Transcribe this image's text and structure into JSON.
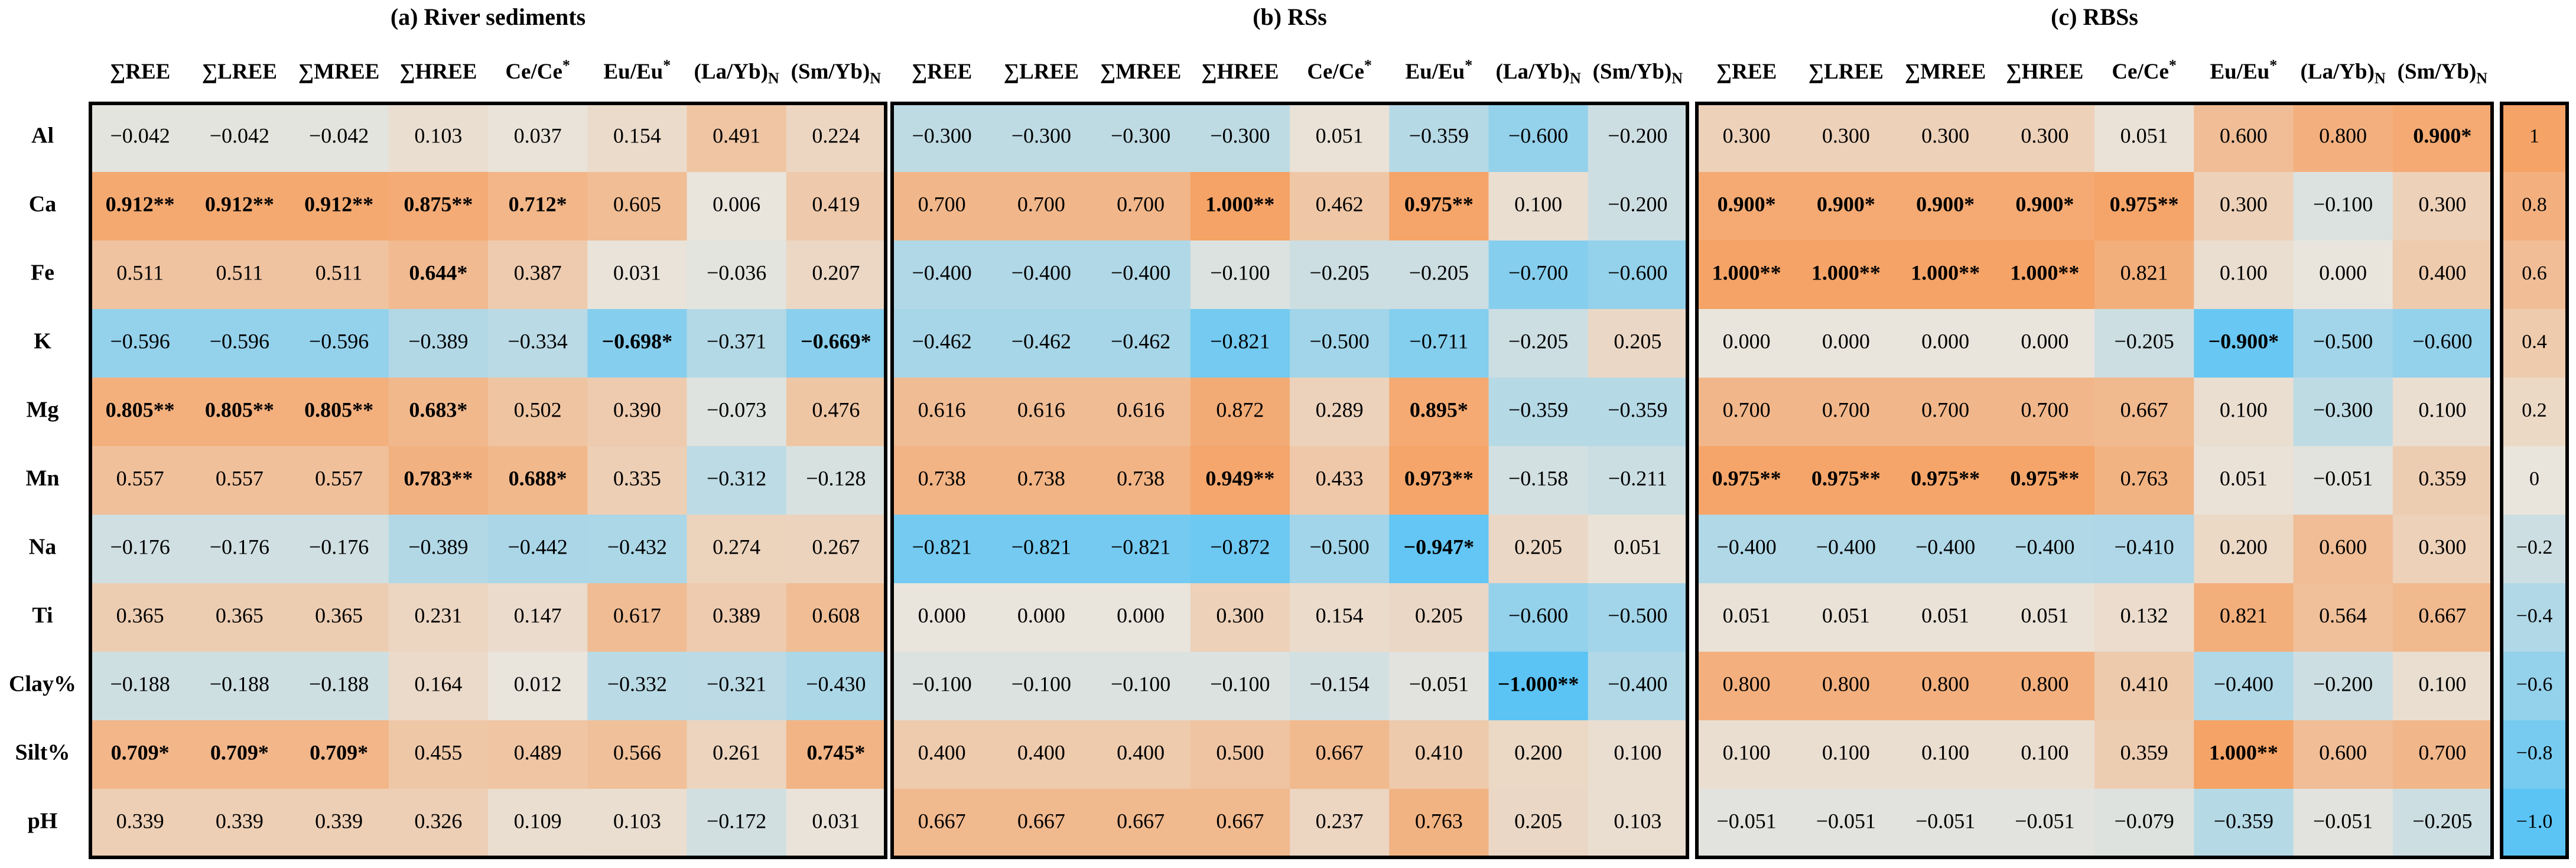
{
  "chart_data": [
    {
      "type": "heatmap",
      "title": "(a) River sediments",
      "categories": [
        "∑REE",
        "∑LREE",
        "∑MREE",
        "∑HREE",
        "Ce/Ce*",
        "Eu/Eu*",
        "(La/Yb)N",
        "(Sm/Yb)N"
      ],
      "values": [
        [
          -0.042,
          -0.042,
          -0.042,
          0.103,
          0.037,
          0.154,
          0.491,
          0.224
        ],
        [
          0.912,
          0.912,
          0.912,
          0.875,
          0.712,
          0.605,
          0.006,
          0.419
        ],
        [
          0.511,
          0.511,
          0.511,
          0.644,
          0.387,
          0.031,
          -0.036,
          0.207
        ],
        [
          -0.596,
          -0.596,
          -0.596,
          -0.389,
          -0.334,
          -0.698,
          -0.371,
          -0.669
        ],
        [
          0.805,
          0.805,
          0.805,
          0.683,
          0.502,
          0.39,
          -0.073,
          0.476
        ],
        [
          0.557,
          0.557,
          0.557,
          0.783,
          0.688,
          0.335,
          -0.312,
          -0.128
        ],
        [
          -0.176,
          -0.176,
          -0.176,
          -0.389,
          -0.442,
          -0.432,
          0.274,
          0.267
        ],
        [
          0.365,
          0.365,
          0.365,
          0.231,
          0.147,
          0.617,
          0.389,
          0.608
        ],
        [
          -0.188,
          -0.188,
          -0.188,
          0.164,
          0.012,
          -0.332,
          -0.321,
          -0.43
        ],
        [
          0.709,
          0.709,
          0.709,
          0.455,
          0.489,
          0.566,
          0.261,
          0.745
        ],
        [
          0.339,
          0.339,
          0.339,
          0.326,
          0.109,
          0.103,
          -0.172,
          0.031
        ]
      ],
      "value_labels": [
        [
          "−0.042",
          "−0.042",
          "−0.042",
          "0.103",
          "0.037",
          "0.154",
          "0.491",
          "0.224"
        ],
        [
          "0.912**",
          "0.912**",
          "0.912**",
          "0.875**",
          "0.712*",
          "0.605",
          "0.006",
          "0.419"
        ],
        [
          "0.511",
          "0.511",
          "0.511",
          "0.644*",
          "0.387",
          "0.031",
          "−0.036",
          "0.207"
        ],
        [
          "−0.596",
          "−0.596",
          "−0.596",
          "−0.389",
          "−0.334",
          "−0.698*",
          "−0.371",
          "−0.669*"
        ],
        [
          "0.805**",
          "0.805**",
          "0.805**",
          "0.683*",
          "0.502",
          "0.390",
          "−0.073",
          "0.476"
        ],
        [
          "0.557",
          "0.557",
          "0.557",
          "0.783**",
          "0.688*",
          "0.335",
          "−0.312",
          "−0.128"
        ],
        [
          "−0.176",
          "−0.176",
          "−0.176",
          "−0.389",
          "−0.442",
          "−0.432",
          "0.274",
          "0.267"
        ],
        [
          "0.365",
          "0.365",
          "0.365",
          "0.231",
          "0.147",
          "0.617",
          "0.389",
          "0.608"
        ],
        [
          "−0.188",
          "−0.188",
          "−0.188",
          "0.164",
          "0.012",
          "−0.332",
          "−0.321",
          "−0.430"
        ],
        [
          "0.709*",
          "0.709*",
          "0.709*",
          "0.455",
          "0.489",
          "0.566",
          "0.261",
          "0.745*"
        ],
        [
          "0.339",
          "0.339",
          "0.339",
          "0.326",
          "0.109",
          "0.103",
          "−0.172",
          "0.031"
        ]
      ]
    },
    {
      "type": "heatmap",
      "title": "(b) RSs",
      "categories": [
        "∑REE",
        "∑LREE",
        "∑MREE",
        "∑HREE",
        "Ce/Ce*",
        "Eu/Eu*",
        "(La/Yb)N",
        "(Sm/Yb)N"
      ],
      "values": [
        [
          -0.3,
          -0.3,
          -0.3,
          -0.3,
          0.051,
          -0.359,
          -0.6,
          -0.2
        ],
        [
          0.7,
          0.7,
          0.7,
          1.0,
          0.462,
          0.975,
          0.1,
          -0.2
        ],
        [
          -0.4,
          -0.4,
          -0.4,
          -0.1,
          -0.205,
          -0.205,
          -0.7,
          -0.6
        ],
        [
          -0.462,
          -0.462,
          -0.462,
          -0.821,
          -0.5,
          -0.711,
          -0.205,
          0.205
        ],
        [
          0.616,
          0.616,
          0.616,
          0.872,
          0.289,
          0.895,
          -0.359,
          -0.359
        ],
        [
          0.738,
          0.738,
          0.738,
          0.949,
          0.433,
          0.973,
          -0.158,
          -0.211
        ],
        [
          -0.821,
          -0.821,
          -0.821,
          -0.872,
          -0.5,
          -0.947,
          0.205,
          0.051
        ],
        [
          0.0,
          0.0,
          0.0,
          0.3,
          0.154,
          0.205,
          -0.6,
          -0.5
        ],
        [
          -0.1,
          -0.1,
          -0.1,
          -0.1,
          -0.154,
          -0.051,
          -1.0,
          -0.4
        ],
        [
          0.4,
          0.4,
          0.4,
          0.5,
          0.667,
          0.41,
          0.2,
          0.1
        ],
        [
          0.667,
          0.667,
          0.667,
          0.667,
          0.237,
          0.763,
          0.205,
          0.103
        ]
      ],
      "value_labels": [
        [
          "−0.300",
          "−0.300",
          "−0.300",
          "−0.300",
          "0.051",
          "−0.359",
          "−0.600",
          "−0.200"
        ],
        [
          "0.700",
          "0.700",
          "0.700",
          "1.000**",
          "0.462",
          "0.975**",
          "0.100",
          "−0.200"
        ],
        [
          "−0.400",
          "−0.400",
          "−0.400",
          "−0.100",
          "−0.205",
          "−0.205",
          "−0.700",
          "−0.600"
        ],
        [
          "−0.462",
          "−0.462",
          "−0.462",
          "−0.821",
          "−0.500",
          "−0.711",
          "−0.205",
          "0.205"
        ],
        [
          "0.616",
          "0.616",
          "0.616",
          "0.872",
          "0.289",
          "0.895*",
          "−0.359",
          "−0.359"
        ],
        [
          "0.738",
          "0.738",
          "0.738",
          "0.949**",
          "0.433",
          "0.973**",
          "−0.158",
          "−0.211"
        ],
        [
          "−0.821",
          "−0.821",
          "−0.821",
          "−0.872",
          "−0.500",
          "−0.947*",
          "0.205",
          "0.051"
        ],
        [
          "0.000",
          "0.000",
          "0.000",
          "0.300",
          "0.154",
          "0.205",
          "−0.600",
          "−0.500"
        ],
        [
          "−0.100",
          "−0.100",
          "−0.100",
          "−0.100",
          "−0.154",
          "−0.051",
          "−1.000**",
          "−0.400"
        ],
        [
          "0.400",
          "0.400",
          "0.400",
          "0.500",
          "0.667",
          "0.410",
          "0.200",
          "0.100"
        ],
        [
          "0.667",
          "0.667",
          "0.667",
          "0.667",
          "0.237",
          "0.763",
          "0.205",
          "0.103"
        ]
      ]
    },
    {
      "type": "heatmap",
      "title": "(c) RBSs",
      "categories": [
        "∑REE",
        "∑LREE",
        "∑MREE",
        "∑HREE",
        "Ce/Ce*",
        "Eu/Eu*",
        "(La/Yb)N",
        "(Sm/Yb)N"
      ],
      "values": [
        [
          0.3,
          0.3,
          0.3,
          0.3,
          0.051,
          0.6,
          0.8,
          0.9
        ],
        [
          0.9,
          0.9,
          0.9,
          0.9,
          0.975,
          0.3,
          -0.1,
          0.3
        ],
        [
          1.0,
          1.0,
          1.0,
          1.0,
          0.821,
          0.1,
          0.0,
          0.4
        ],
        [
          0.0,
          0.0,
          0.0,
          0.0,
          -0.205,
          -0.9,
          -0.5,
          -0.6
        ],
        [
          0.7,
          0.7,
          0.7,
          0.7,
          0.667,
          0.1,
          -0.3,
          0.1
        ],
        [
          0.975,
          0.975,
          0.975,
          0.975,
          0.763,
          0.051,
          -0.051,
          0.359
        ],
        [
          -0.4,
          -0.4,
          -0.4,
          -0.4,
          -0.41,
          0.2,
          0.6,
          0.3
        ],
        [
          0.051,
          0.051,
          0.051,
          0.051,
          0.132,
          0.821,
          0.564,
          0.667
        ],
        [
          0.8,
          0.8,
          0.8,
          0.8,
          0.41,
          -0.4,
          -0.2,
          0.1
        ],
        [
          0.1,
          0.1,
          0.1,
          0.1,
          0.359,
          1.0,
          0.6,
          0.7
        ],
        [
          -0.051,
          -0.051,
          -0.051,
          -0.051,
          -0.079,
          -0.359,
          -0.051,
          -0.205
        ]
      ],
      "value_labels": [
        [
          "0.300",
          "0.300",
          "0.300",
          "0.300",
          "0.051",
          "0.600",
          "0.800",
          "0.900*"
        ],
        [
          "0.900*",
          "0.900*",
          "0.900*",
          "0.900*",
          "0.975**",
          "0.300",
          "−0.100",
          "0.300"
        ],
        [
          "1.000**",
          "1.000**",
          "1.000**",
          "1.000**",
          "0.821",
          "0.100",
          "0.000",
          "0.400"
        ],
        [
          "0.000",
          "0.000",
          "0.000",
          "0.000",
          "−0.205",
          "−0.900*",
          "−0.500",
          "−0.600"
        ],
        [
          "0.700",
          "0.700",
          "0.700",
          "0.700",
          "0.667",
          "0.100",
          "−0.300",
          "0.100"
        ],
        [
          "0.975**",
          "0.975**",
          "0.975**",
          "0.975**",
          "0.763",
          "0.051",
          "−0.051",
          "0.359"
        ],
        [
          "−0.400",
          "−0.400",
          "−0.400",
          "−0.400",
          "−0.410",
          "0.200",
          "0.600",
          "0.300"
        ],
        [
          "0.051",
          "0.051",
          "0.051",
          "0.051",
          "0.132",
          "0.821",
          "0.564",
          "0.667"
        ],
        [
          "0.800",
          "0.800",
          "0.800",
          "0.800",
          "0.410",
          "−0.400",
          "−0.200",
          "0.100"
        ],
        [
          "0.100",
          "0.100",
          "0.100",
          "0.100",
          "0.359",
          "1.000**",
          "0.600",
          "0.700"
        ],
        [
          "−0.051",
          "−0.051",
          "−0.051",
          "−0.051",
          "−0.079",
          "−0.359",
          "−0.051",
          "−0.205"
        ]
      ]
    }
  ],
  "row_labels": [
    "Al",
    "Ca",
    "Fe",
    "K",
    "Mg",
    "Mn",
    "Na",
    "Ti",
    "Clay%",
    "Silt%",
    "pH"
  ],
  "colorscale": {
    "zlim": [
      -1,
      1
    ],
    "colors": [
      "#5bc4f5",
      "#e9e5dd",
      "#f5a366"
    ],
    "ticks": [
      1,
      0.8,
      0.6,
      0.4,
      0.2,
      0,
      {
        "value": -0.2,
        "label": "−0.2"
      },
      {
        "value": -0.4,
        "label": "−0.4"
      },
      {
        "value": -0.6,
        "label": "−0.6"
      },
      {
        "value": -0.8,
        "label": "−0.8"
      },
      {
        "value": -1,
        "label": "−1.0"
      }
    ]
  }
}
